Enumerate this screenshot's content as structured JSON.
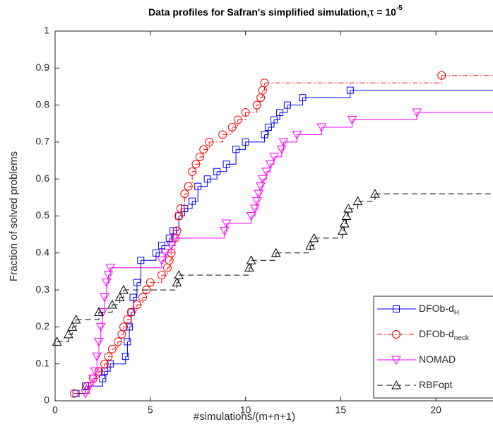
{
  "chart_data": {
    "type": "step",
    "title": "Data profiles for Safran's simplified simulation,",
    "title_symbol": "τ = 10",
    "title_superscript": "-5",
    "xlabel": "#simulations/(m+n+1)",
    "ylabel": "Fraction of solved problems",
    "xlim": [
      0,
      23
    ],
    "ylim": [
      0,
      1
    ],
    "xticks": [
      0,
      5,
      10,
      15,
      20
    ],
    "yticks": [
      0,
      0.1,
      0.2,
      0.3,
      0.4,
      0.5,
      0.6,
      0.7,
      0.8,
      0.9,
      1
    ],
    "legend": "lower right",
    "series": [
      {
        "name": "DFOb-d",
        "name_sub": "H",
        "color": "#0000ff",
        "linestyle": "solid",
        "marker": "square",
        "x": [
          1.1,
          1.6,
          2.5,
          2.6,
          2.9,
          3.7,
          3.8,
          3.9,
          4.0,
          4.1,
          4.3,
          4.5,
          5.3,
          5.6,
          6.0,
          6.2,
          6.5,
          6.8,
          7.2,
          7.5,
          8.0,
          8.5,
          9.0,
          9.5,
          10.0,
          11.0,
          11.2,
          11.5,
          11.8,
          12.2,
          13.0,
          15.5
        ],
        "values": [
          0.02,
          0.04,
          0.06,
          0.08,
          0.1,
          0.12,
          0.16,
          0.2,
          0.24,
          0.28,
          0.32,
          0.38,
          0.4,
          0.42,
          0.44,
          0.46,
          0.5,
          0.52,
          0.54,
          0.58,
          0.6,
          0.62,
          0.64,
          0.68,
          0.7,
          0.72,
          0.74,
          0.76,
          0.78,
          0.8,
          0.82,
          0.84
        ]
      },
      {
        "name": "DFOb-d",
        "name_sub": "neck",
        "color": "#ff0000",
        "linestyle": "dashdot",
        "marker": "circle",
        "x": [
          1.0,
          1.7,
          2.0,
          2.3,
          2.6,
          2.8,
          3.0,
          3.3,
          3.5,
          3.6,
          3.8,
          4.0,
          4.3,
          4.6,
          4.8,
          5.0,
          5.6,
          5.9,
          6.0,
          6.1,
          6.3,
          6.4,
          6.5,
          6.6,
          6.8,
          7.0,
          7.2,
          7.4,
          7.6,
          7.8,
          8.1,
          8.8,
          9.3,
          9.6,
          10.0,
          10.6,
          10.8,
          10.9,
          11.0,
          20.3
        ],
        "values": [
          0.02,
          0.04,
          0.06,
          0.08,
          0.1,
          0.12,
          0.14,
          0.16,
          0.18,
          0.2,
          0.22,
          0.24,
          0.26,
          0.28,
          0.3,
          0.32,
          0.34,
          0.36,
          0.38,
          0.4,
          0.44,
          0.46,
          0.5,
          0.52,
          0.56,
          0.58,
          0.62,
          0.64,
          0.66,
          0.68,
          0.7,
          0.72,
          0.74,
          0.76,
          0.78,
          0.8,
          0.82,
          0.84,
          0.86,
          0.88
        ]
      },
      {
        "name": "NOMAD",
        "color": "#ff00ff",
        "linestyle": "solid",
        "marker": "triangle-down",
        "x": [
          1.6,
          1.8,
          2.0,
          2.1,
          2.2,
          2.3,
          2.4,
          2.5,
          2.6,
          2.7,
          2.8,
          2.9,
          5.6,
          5.8,
          6.1,
          6.3,
          8.9,
          9.0,
          10.3,
          10.5,
          10.6,
          10.7,
          10.8,
          10.9,
          11.1,
          11.3,
          11.5,
          11.9,
          12.0,
          12.7,
          14.0,
          15.6,
          19.0
        ],
        "values": [
          0.02,
          0.04,
          0.06,
          0.08,
          0.12,
          0.16,
          0.2,
          0.24,
          0.28,
          0.32,
          0.34,
          0.36,
          0.38,
          0.4,
          0.42,
          0.44,
          0.46,
          0.48,
          0.5,
          0.52,
          0.54,
          0.56,
          0.58,
          0.6,
          0.62,
          0.64,
          0.66,
          0.68,
          0.7,
          0.72,
          0.74,
          0.76,
          0.78
        ]
      },
      {
        "name": "RBFopt",
        "color": "#000000",
        "linestyle": "dashed",
        "marker": "triangle-up",
        "x": [
          0.1,
          0.7,
          0.9,
          1.1,
          2.3,
          3.0,
          3.4,
          3.6,
          6.4,
          6.5,
          10.2,
          10.3,
          11.6,
          13.4,
          13.6,
          15.1,
          15.2,
          15.3,
          15.4,
          15.9,
          16.8
        ],
        "values": [
          0.16,
          0.18,
          0.2,
          0.22,
          0.24,
          0.26,
          0.28,
          0.3,
          0.32,
          0.34,
          0.36,
          0.38,
          0.4,
          0.42,
          0.44,
          0.46,
          0.48,
          0.5,
          0.52,
          0.54,
          0.56
        ]
      }
    ]
  }
}
